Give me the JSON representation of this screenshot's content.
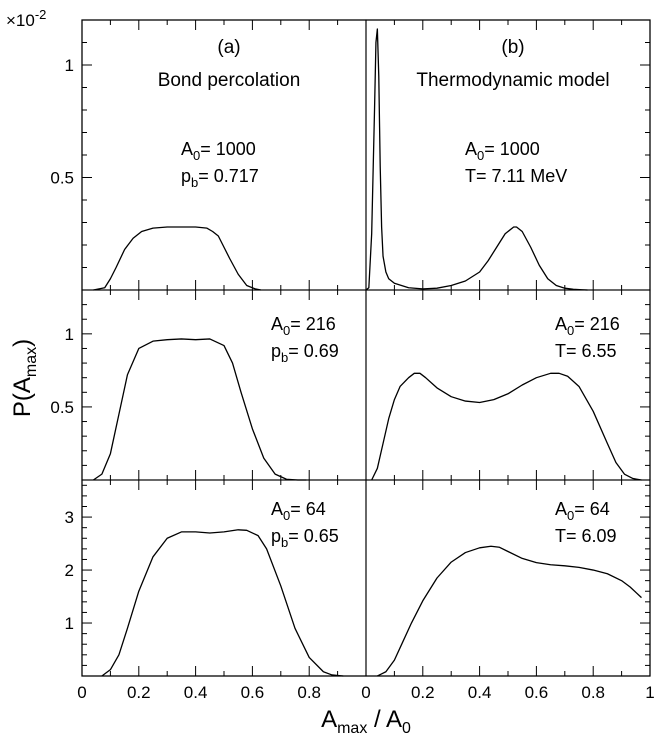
{
  "figure": {
    "ylabel": {
      "main": "P(A",
      "sub": "max",
      "close": ")"
    },
    "xlabel": {
      "main": "A",
      "sub1": "max",
      "mid": " / A",
      "sub2": "0"
    },
    "top_scale": {
      "prefix": "×10",
      "exp": "-2"
    }
  },
  "chart_data": [
    {
      "type": "line",
      "panel": "a-top",
      "title": "(a)",
      "subtitle": "Bond percolation",
      "annotation_lines": [
        {
          "main": "A",
          "sub": "0",
          "rest": "= 1000"
        },
        {
          "main": "p",
          "sub": "b",
          "rest": "= 0.717"
        }
      ],
      "xlim": [
        0,
        1
      ],
      "ylim": [
        0,
        1.2
      ],
      "yticks": [
        0.5,
        1
      ],
      "ytick_labels": [
        "0.5",
        "1"
      ],
      "y_scale_factor": "1e-2",
      "series": [
        {
          "x": [
            0.04,
            0.08,
            0.1,
            0.12,
            0.15,
            0.18,
            0.21,
            0.25,
            0.3,
            0.35,
            0.4,
            0.44,
            0.46,
            0.48,
            0.5,
            0.52,
            0.55,
            0.58,
            0.61,
            0.63
          ],
          "y": [
            0,
            0.01,
            0.05,
            0.1,
            0.18,
            0.23,
            0.26,
            0.275,
            0.28,
            0.28,
            0.28,
            0.275,
            0.26,
            0.24,
            0.19,
            0.14,
            0.07,
            0.02,
            0.005,
            0
          ]
        }
      ]
    },
    {
      "type": "line",
      "panel": "b-top",
      "title": "(b)",
      "subtitle": "Thermodynamic model",
      "annotation_lines": [
        {
          "main": "A",
          "sub": "0",
          "rest": "= 1000"
        },
        {
          "main": "T",
          "sub": "",
          "rest": "= 7.11 MeV"
        }
      ],
      "xlim": [
        0,
        1
      ],
      "ylim": [
        0,
        1.2
      ],
      "series": [
        {
          "x": [
            0,
            0.01,
            0.02,
            0.03,
            0.035,
            0.04,
            0.045,
            0.05,
            0.055,
            0.06,
            0.07,
            0.08,
            0.1,
            0.15,
            0.2,
            0.25,
            0.3,
            0.35,
            0.4,
            0.43,
            0.46,
            0.49,
            0.52,
            0.53,
            0.55,
            0.58,
            0.61,
            0.64,
            0.67,
            0.7,
            0.73,
            0.76,
            0.78
          ],
          "y": [
            0,
            0.01,
            0.25,
            0.8,
            1.1,
            1.16,
            0.95,
            0.55,
            0.28,
            0.15,
            0.08,
            0.05,
            0.03,
            0.01,
            0.005,
            0.008,
            0.02,
            0.04,
            0.08,
            0.13,
            0.19,
            0.25,
            0.28,
            0.28,
            0.26,
            0.19,
            0.11,
            0.05,
            0.02,
            0.008,
            0.003,
            0.001,
            0
          ]
        }
      ]
    },
    {
      "type": "line",
      "panel": "a-middle",
      "annotation_lines": [
        {
          "main": "A",
          "sub": "0",
          "rest": "= 216"
        },
        {
          "main": "p",
          "sub": "b",
          "rest": "= 0.69"
        }
      ],
      "xlim": [
        0,
        1
      ],
      "ylim": [
        0,
        1.3
      ],
      "yticks": [
        0.5,
        1
      ],
      "ytick_labels": [
        "0.5",
        "1"
      ],
      "series": [
        {
          "x": [
            0.04,
            0.07,
            0.1,
            0.13,
            0.16,
            0.2,
            0.25,
            0.3,
            0.35,
            0.4,
            0.45,
            0.5,
            0.53,
            0.56,
            0.6,
            0.64,
            0.68,
            0.72,
            0.76,
            0.79
          ],
          "y": [
            0,
            0.04,
            0.18,
            0.45,
            0.72,
            0.9,
            0.95,
            0.96,
            0.965,
            0.96,
            0.965,
            0.92,
            0.8,
            0.6,
            0.35,
            0.15,
            0.04,
            0.005,
            0,
            0
          ]
        }
      ]
    },
    {
      "type": "line",
      "panel": "b-middle",
      "annotation_lines": [
        {
          "main": "A",
          "sub": "0",
          "rest": "= 216"
        },
        {
          "main": "T",
          "sub": "",
          "rest": "= 6.55"
        }
      ],
      "xlim": [
        0,
        1
      ],
      "ylim": [
        0,
        1.3
      ],
      "series": [
        {
          "x": [
            0.02,
            0.04,
            0.06,
            0.08,
            0.1,
            0.12,
            0.15,
            0.17,
            0.19,
            0.21,
            0.25,
            0.3,
            0.35,
            0.4,
            0.45,
            0.5,
            0.55,
            0.6,
            0.65,
            0.68,
            0.71,
            0.75,
            0.8,
            0.85,
            0.88,
            0.91,
            0.94,
            0.97
          ],
          "y": [
            0,
            0.08,
            0.25,
            0.42,
            0.55,
            0.64,
            0.7,
            0.73,
            0.73,
            0.7,
            0.63,
            0.57,
            0.54,
            0.53,
            0.55,
            0.59,
            0.65,
            0.7,
            0.73,
            0.73,
            0.71,
            0.64,
            0.47,
            0.25,
            0.12,
            0.04,
            0.01,
            0
          ]
        }
      ]
    },
    {
      "type": "line",
      "panel": "a-bottom",
      "annotation_lines": [
        {
          "main": "A",
          "sub": "0",
          "rest": "= 64"
        },
        {
          "main": "p",
          "sub": "b",
          "rest": "= 0.65"
        }
      ],
      "xlim": [
        0,
        1
      ],
      "ylim": [
        0,
        3.7
      ],
      "yticks": [
        1,
        2,
        3
      ],
      "ytick_labels": [
        "1",
        "2",
        "3"
      ],
      "series": [
        {
          "x": [
            0.07,
            0.1,
            0.13,
            0.16,
            0.2,
            0.25,
            0.3,
            0.35,
            0.4,
            0.45,
            0.5,
            0.55,
            0.58,
            0.62,
            0.65,
            0.7,
            0.75,
            0.8,
            0.85,
            0.88,
            0.92
          ],
          "y": [
            0,
            0.12,
            0.4,
            0.9,
            1.6,
            2.25,
            2.6,
            2.72,
            2.72,
            2.7,
            2.72,
            2.76,
            2.75,
            2.65,
            2.4,
            1.7,
            0.9,
            0.35,
            0.08,
            0.02,
            0
          ]
        }
      ]
    },
    {
      "type": "line",
      "panel": "b-bottom",
      "annotation_lines": [
        {
          "main": "A",
          "sub": "0",
          "rest": "= 64"
        },
        {
          "main": "T",
          "sub": "",
          "rest": "= 6.09"
        }
      ],
      "xlim": [
        0,
        1
      ],
      "ylim": [
        0,
        3.7
      ],
      "series": [
        {
          "x": [
            0.04,
            0.07,
            0.1,
            0.13,
            0.16,
            0.2,
            0.25,
            0.3,
            0.35,
            0.4,
            0.44,
            0.47,
            0.5,
            0.55,
            0.6,
            0.65,
            0.7,
            0.75,
            0.8,
            0.85,
            0.9,
            0.93,
            0.95,
            0.97
          ],
          "y": [
            0,
            0.08,
            0.3,
            0.65,
            1.0,
            1.42,
            1.85,
            2.15,
            2.33,
            2.42,
            2.45,
            2.43,
            2.35,
            2.22,
            2.14,
            2.1,
            2.08,
            2.05,
            2.0,
            1.93,
            1.8,
            1.68,
            1.58,
            1.48
          ]
        }
      ]
    }
  ],
  "xaxis": {
    "ticks": [
      0,
      0.2,
      0.4,
      0.6,
      0.8,
      1
    ],
    "left_labels": [
      "0",
      "0.2",
      "0.4",
      "0.6",
      "0.8"
    ],
    "right_labels": [
      "0",
      "0.2",
      "0.4",
      "0.6",
      "0.8",
      "1"
    ]
  }
}
